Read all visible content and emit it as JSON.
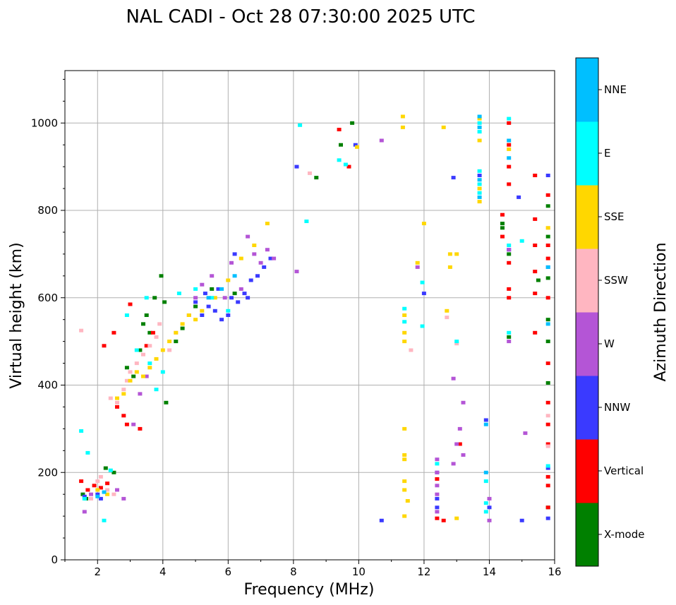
{
  "chart_data": {
    "type": "scatter",
    "title": "NAL CADI - Oct 28 07:30:00 2025 UTC",
    "xlabel": "Frequency (MHz)",
    "ylabel": "Virtual height (km)",
    "xlim": [
      1,
      16
    ],
    "ylim": [
      0,
      1120
    ],
    "xticks": [
      2,
      4,
      6,
      8,
      10,
      12,
      14,
      16
    ],
    "yticks": [
      0,
      200,
      400,
      600,
      800,
      1000
    ],
    "grid": true,
    "colorbar": {
      "label": "Azimuth Direction",
      "categories": [
        "X-mode",
        "Vertical",
        "NNW",
        "W",
        "SSW",
        "SSE",
        "E",
        "NNE"
      ],
      "colors": [
        "#008000",
        "#ff0000",
        "#3a3aff",
        "#b455d6",
        "#ffb6c1",
        "#ffd700",
        "#00ffff",
        "#00bfff"
      ]
    },
    "series": [
      {
        "name": "X-mode",
        "points": [
          [
            1.55,
            150
          ],
          [
            1.65,
            140
          ],
          [
            2.25,
            210
          ],
          [
            2.5,
            200
          ],
          [
            3.3,
            480
          ],
          [
            3.4,
            540
          ],
          [
            3.5,
            560
          ],
          [
            3.6,
            520
          ],
          [
            3.75,
            600
          ],
          [
            3.95,
            650
          ],
          [
            4.05,
            590
          ],
          [
            4.1,
            360
          ],
          [
            3.1,
            420
          ],
          [
            2.9,
            440
          ],
          [
            4.4,
            500
          ],
          [
            4.6,
            530
          ],
          [
            5.0,
            580
          ],
          [
            8.7,
            875
          ],
          [
            9.45,
            950
          ],
          [
            9.8,
            1000
          ],
          [
            14.4,
            770
          ],
          [
            14.4,
            760
          ],
          [
            14.6,
            700
          ],
          [
            14.6,
            510
          ],
          [
            15.8,
            810
          ],
          [
            15.8,
            740
          ],
          [
            15.8,
            645
          ],
          [
            15.8,
            550
          ],
          [
            15.8,
            500
          ],
          [
            15.8,
            405
          ],
          [
            15.8,
            120
          ],
          [
            15.5,
            640
          ],
          [
            5.5,
            620
          ],
          [
            6.2,
            610
          ]
        ]
      },
      {
        "name": "Vertical",
        "points": [
          [
            1.5,
            180
          ],
          [
            1.7,
            160
          ],
          [
            1.9,
            170
          ],
          [
            2.1,
            165
          ],
          [
            2.3,
            175
          ],
          [
            2.5,
            520
          ],
          [
            2.2,
            490
          ],
          [
            2.6,
            350
          ],
          [
            2.8,
            330
          ],
          [
            2.9,
            310
          ],
          [
            3.3,
            300
          ],
          [
            3.5,
            490
          ],
          [
            3.7,
            520
          ],
          [
            3.0,
            585
          ],
          [
            9.4,
            985
          ],
          [
            9.7,
            900
          ],
          [
            12.4,
            185
          ],
          [
            12.4,
            95
          ],
          [
            12.6,
            90
          ],
          [
            13.1,
            265
          ],
          [
            14.4,
            790
          ],
          [
            14.4,
            740
          ],
          [
            14.6,
            680
          ],
          [
            14.6,
            620
          ],
          [
            14.6,
            600
          ],
          [
            14.6,
            950
          ],
          [
            14.6,
            900
          ],
          [
            14.6,
            860
          ],
          [
            14.6,
            1000
          ],
          [
            15.4,
            880
          ],
          [
            15.4,
            780
          ],
          [
            15.4,
            720
          ],
          [
            15.4,
            660
          ],
          [
            15.4,
            610
          ],
          [
            15.4,
            520
          ],
          [
            15.8,
            835
          ],
          [
            15.8,
            720
          ],
          [
            15.8,
            690
          ],
          [
            15.8,
            600
          ],
          [
            15.8,
            450
          ],
          [
            15.8,
            360
          ],
          [
            15.8,
            310
          ],
          [
            15.8,
            265
          ],
          [
            15.8,
            190
          ],
          [
            15.8,
            170
          ],
          [
            15.8,
            120
          ]
        ]
      },
      {
        "name": "NNW",
        "points": [
          [
            1.6,
            145
          ],
          [
            2.0,
            150
          ],
          [
            2.1,
            140
          ],
          [
            5.2,
            560
          ],
          [
            5.4,
            580
          ],
          [
            5.6,
            570
          ],
          [
            5.8,
            550
          ],
          [
            6.0,
            560
          ],
          [
            6.1,
            600
          ],
          [
            6.3,
            590
          ],
          [
            6.5,
            610
          ],
          [
            6.7,
            640
          ],
          [
            6.9,
            650
          ],
          [
            7.1,
            670
          ],
          [
            7.3,
            690
          ],
          [
            5.3,
            610
          ],
          [
            5.7,
            620
          ],
          [
            6.2,
            700
          ],
          [
            6.6,
            600
          ],
          [
            5.0,
            590
          ],
          [
            8.1,
            900
          ],
          [
            9.9,
            950
          ],
          [
            10.7,
            90
          ],
          [
            12.4,
            200
          ],
          [
            12.4,
            140
          ],
          [
            12.4,
            120
          ],
          [
            12.9,
            875
          ],
          [
            13.7,
            880
          ],
          [
            13.9,
            320
          ],
          [
            14.0,
            120
          ],
          [
            14.6,
            710
          ],
          [
            14.9,
            830
          ],
          [
            15.0,
            90
          ],
          [
            15.8,
            880
          ],
          [
            15.8,
            210
          ],
          [
            15.8,
            95
          ],
          [
            12.0,
            610
          ]
        ]
      },
      {
        "name": "W",
        "points": [
          [
            1.6,
            110
          ],
          [
            1.8,
            150
          ],
          [
            2.6,
            160
          ],
          [
            2.8,
            140
          ],
          [
            3.1,
            310
          ],
          [
            3.3,
            380
          ],
          [
            3.5,
            420
          ],
          [
            4.8,
            560
          ],
          [
            5.0,
            600
          ],
          [
            5.2,
            630
          ],
          [
            5.5,
            650
          ],
          [
            5.9,
            600
          ],
          [
            6.1,
            680
          ],
          [
            6.4,
            620
          ],
          [
            6.8,
            700
          ],
          [
            7.0,
            680
          ],
          [
            7.2,
            710
          ],
          [
            7.4,
            690
          ],
          [
            6.6,
            740
          ],
          [
            8.1,
            660
          ],
          [
            10.7,
            960
          ],
          [
            11.8,
            670
          ],
          [
            12.4,
            230
          ],
          [
            12.4,
            200
          ],
          [
            12.4,
            170
          ],
          [
            12.4,
            150
          ],
          [
            12.4,
            110
          ],
          [
            12.9,
            220
          ],
          [
            12.9,
            415
          ],
          [
            13.0,
            265
          ],
          [
            13.1,
            300
          ],
          [
            13.2,
            360
          ],
          [
            13.2,
            240
          ],
          [
            14.0,
            140
          ],
          [
            14.0,
            90
          ],
          [
            14.6,
            500
          ],
          [
            14.6,
            710
          ],
          [
            15.1,
            290
          ],
          [
            15.8,
            670
          ]
        ]
      },
      {
        "name": "SSW",
        "points": [
          [
            1.5,
            525
          ],
          [
            1.8,
            140
          ],
          [
            2.0,
            180
          ],
          [
            2.3,
            160
          ],
          [
            2.5,
            150
          ],
          [
            2.6,
            360
          ],
          [
            2.8,
            390
          ],
          [
            2.9,
            410
          ],
          [
            3.0,
            430
          ],
          [
            3.2,
            450
          ],
          [
            3.4,
            470
          ],
          [
            3.6,
            490
          ],
          [
            3.8,
            510
          ],
          [
            4.2,
            480
          ],
          [
            4.4,
            520
          ],
          [
            8.5,
            885
          ],
          [
            11.6,
            480
          ],
          [
            12.7,
            555
          ],
          [
            13.0,
            495
          ],
          [
            15.8,
            760
          ],
          [
            15.8,
            330
          ],
          [
            15.8,
            260
          ],
          [
            2.1,
            190
          ],
          [
            2.4,
            370
          ],
          [
            3.9,
            540
          ]
        ]
      },
      {
        "name": "SSE",
        "points": [
          [
            2.0,
            160
          ],
          [
            2.3,
            150
          ],
          [
            2.6,
            370
          ],
          [
            2.8,
            380
          ],
          [
            3.0,
            410
          ],
          [
            3.2,
            430
          ],
          [
            3.4,
            420
          ],
          [
            3.6,
            440
          ],
          [
            3.8,
            460
          ],
          [
            4.0,
            480
          ],
          [
            4.2,
            500
          ],
          [
            4.4,
            520
          ],
          [
            4.6,
            540
          ],
          [
            4.8,
            560
          ],
          [
            5.0,
            550
          ],
          [
            5.2,
            570
          ],
          [
            5.6,
            600
          ],
          [
            6.0,
            640
          ],
          [
            6.4,
            690
          ],
          [
            6.8,
            720
          ],
          [
            7.2,
            770
          ],
          [
            9.95,
            945
          ],
          [
            11.35,
            1015
          ],
          [
            11.35,
            990
          ],
          [
            11.4,
            560
          ],
          [
            11.4,
            520
          ],
          [
            11.4,
            500
          ],
          [
            11.4,
            300
          ],
          [
            11.4,
            240
          ],
          [
            11.4,
            230
          ],
          [
            11.4,
            180
          ],
          [
            11.4,
            160
          ],
          [
            11.4,
            100
          ],
          [
            11.5,
            135
          ],
          [
            11.8,
            680
          ],
          [
            12.0,
            770
          ],
          [
            12.6,
            990
          ],
          [
            12.7,
            570
          ],
          [
            12.8,
            700
          ],
          [
            12.8,
            670
          ],
          [
            13.0,
            700
          ],
          [
            13.0,
            95
          ],
          [
            13.7,
            1010
          ],
          [
            13.7,
            960
          ],
          [
            13.7,
            850
          ],
          [
            13.7,
            820
          ],
          [
            14.6,
            940
          ],
          [
            15.8,
            760
          ]
        ]
      },
      {
        "name": "E",
        "points": [
          [
            1.5,
            295
          ],
          [
            1.6,
            140
          ],
          [
            1.7,
            245
          ],
          [
            2.2,
            90
          ],
          [
            2.4,
            205
          ],
          [
            3.2,
            480
          ],
          [
            3.6,
            450
          ],
          [
            3.8,
            390
          ],
          [
            4.0,
            430
          ],
          [
            4.5,
            610
          ],
          [
            5.0,
            620
          ],
          [
            5.5,
            600
          ],
          [
            6.0,
            570
          ],
          [
            8.2,
            995
          ],
          [
            8.4,
            775
          ],
          [
            9.4,
            915
          ],
          [
            9.6,
            905
          ],
          [
            11.4,
            575
          ],
          [
            11.4,
            545
          ],
          [
            11.95,
            535
          ],
          [
            11.95,
            635
          ],
          [
            12.4,
            220
          ],
          [
            13.0,
            500
          ],
          [
            13.7,
            1000
          ],
          [
            13.7,
            980
          ],
          [
            13.7,
            890
          ],
          [
            13.7,
            860
          ],
          [
            13.7,
            840
          ],
          [
            13.9,
            180
          ],
          [
            13.9,
            130
          ],
          [
            13.9,
            110
          ],
          [
            14.6,
            1010
          ],
          [
            14.6,
            720
          ],
          [
            14.6,
            520
          ],
          [
            15.0,
            730
          ],
          [
            15.8,
            215
          ],
          [
            2.9,
            560
          ],
          [
            3.5,
            600
          ]
        ]
      },
      {
        "name": "NNE",
        "points": [
          [
            2.0,
            145
          ],
          [
            2.2,
            155
          ],
          [
            5.4,
            600
          ],
          [
            5.8,
            620
          ],
          [
            6.2,
            650
          ],
          [
            13.7,
            1015
          ],
          [
            13.7,
            990
          ],
          [
            13.7,
            870
          ],
          [
            13.7,
            830
          ],
          [
            13.9,
            310
          ],
          [
            13.9,
            200
          ],
          [
            14.6,
            960
          ],
          [
            14.6,
            920
          ],
          [
            15.8,
            670
          ],
          [
            15.8,
            540
          ]
        ]
      }
    ]
  }
}
